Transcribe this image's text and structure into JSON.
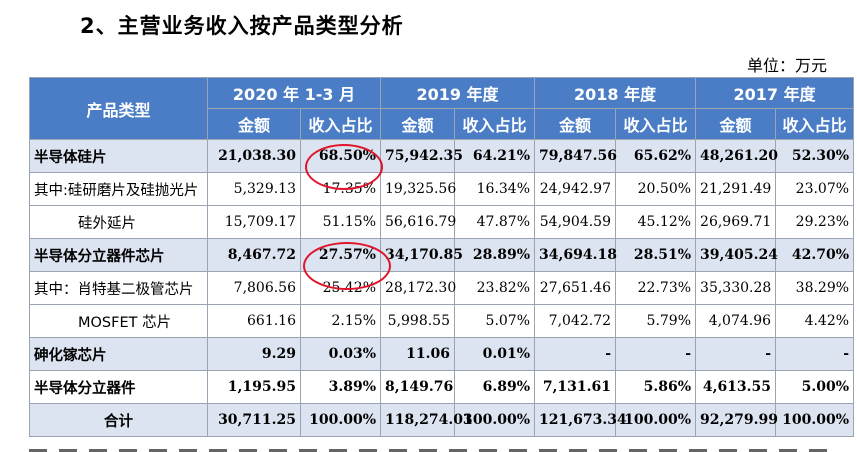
{
  "heading": "2、主营业务收入按产品类型分析",
  "unit": "单位：万元",
  "table": {
    "header_product": "产品类型",
    "periods": [
      "2020 年 1-3 月",
      "2019 年度",
      "2018 年度",
      "2017 年度"
    ],
    "amount_label": "金额",
    "ratio_label": "收入占比",
    "rows": [
      {
        "label": "半导体硅片",
        "values": [
          "21,038.30",
          "68.50%",
          "75,942.35",
          "64.21%",
          "79,847.56",
          "65.62%",
          "48,261.20",
          "52.30%"
        ]
      },
      {
        "label": "其中:硅研磨片及硅抛光片",
        "values": [
          "5,329.13",
          "17.35%",
          "19,325.56",
          "16.34%",
          "24,942.97",
          "20.50%",
          "21,291.49",
          "23.07%"
        ]
      },
      {
        "label": "硅外延片",
        "values": [
          "15,709.17",
          "51.15%",
          "56,616.79",
          "47.87%",
          "54,904.59",
          "45.12%",
          "26,969.71",
          "29.23%"
        ]
      },
      {
        "label": "半导体分立器件芯片",
        "values": [
          "8,467.72",
          "27.57%",
          "34,170.85",
          "28.89%",
          "34,694.18",
          "28.51%",
          "39,405.24",
          "42.70%"
        ]
      },
      {
        "label": "其中：肖特基二极管芯片",
        "values": [
          "7,806.56",
          "25.42%",
          "28,172.30",
          "23.82%",
          "27,651.46",
          "22.73%",
          "35,330.28",
          "38.29%"
        ]
      },
      {
        "label": "MOSFET 芯片",
        "values": [
          "661.16",
          "2.15%",
          "5,998.55",
          "5.07%",
          "7,042.72",
          "5.79%",
          "4,074.96",
          "4.42%"
        ]
      },
      {
        "label": "砷化镓芯片",
        "values": [
          "9.29",
          "0.03%",
          "11.06",
          "0.01%",
          "-",
          "-",
          "-",
          "-"
        ]
      },
      {
        "label": "半导体分立器件",
        "values": [
          "1,195.95",
          "3.89%",
          "8,149.76",
          "6.89%",
          "7,131.61",
          "5.86%",
          "4,613.55",
          "5.00%"
        ]
      },
      {
        "label": "合计",
        "values": [
          "30,711.25",
          "100.00%",
          "118,274.03",
          "100.00%",
          "121,673.34",
          "100.00%",
          "92,279.99",
          "100.00%"
        ]
      }
    ]
  },
  "annotation_color": "#e0142a"
}
